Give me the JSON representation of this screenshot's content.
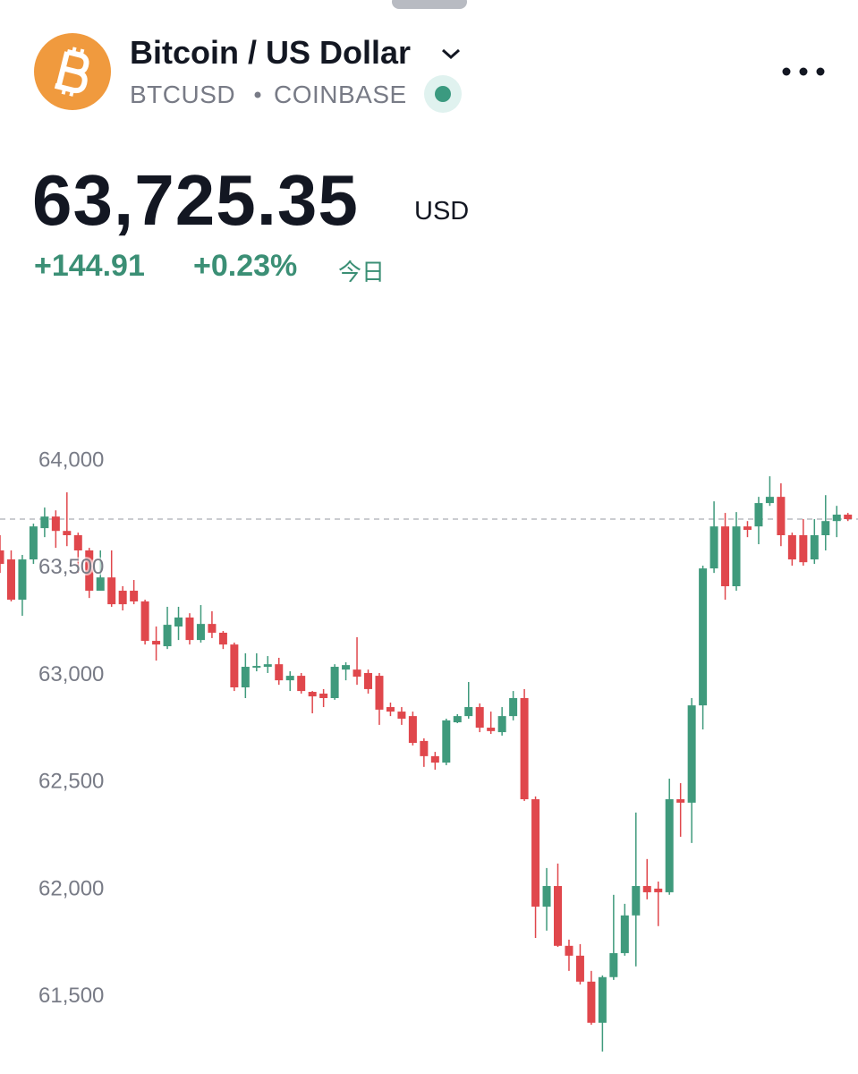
{
  "header": {
    "name": "Bitcoin / US Dollar",
    "symbol": "BTCUSD",
    "exchange": "COINBASE"
  },
  "quote": {
    "price": "63,725.35",
    "currency": "USD",
    "change": "+144.91",
    "change_percent": "+0.23%",
    "period": "今日"
  },
  "chart_data": {
    "type": "candlestick",
    "up_color": "#3f9a7c",
    "down_color": "#e0474c",
    "ylim": [
      61140,
      64105
    ],
    "yticks": [
      {
        "value": 64000,
        "label": "64,000"
      },
      {
        "value": 63500,
        "label": "63,500"
      },
      {
        "value": 63000,
        "label": "63,000"
      },
      {
        "value": 62500,
        "label": "62,500"
      },
      {
        "value": 62000,
        "label": "62,000"
      },
      {
        "value": 61500,
        "label": "61,500"
      }
    ],
    "open": [
      63583,
      63541,
      63353,
      63541,
      63687,
      63741,
      63674,
      63654,
      63583,
      63395,
      63457,
      63395,
      63395,
      63345,
      63161,
      63136,
      63228,
      63270,
      63165,
      63240,
      63199,
      63144,
      62944,
      63036,
      63040,
      63052,
      62977,
      62998,
      62923,
      62915,
      62894,
      63027,
      63027,
      63011,
      62998,
      62852,
      62831,
      62810,
      62694,
      62623,
      62593,
      62781,
      62810,
      62852,
      62756,
      62735,
      62810,
      62894,
      62422,
      61921,
      62017,
      61738,
      61692,
      61571,
      61379,
      61592,
      61704,
      61880,
      62017,
      62005,
      61988,
      62422,
      62406,
      62860,
      63499,
      63695,
      63416,
      63695,
      63695,
      63804,
      63833,
      63654,
      63654,
      63541,
      63654,
      63720,
      63750
    ],
    "high": [
      63654,
      63583,
      63562,
      63708,
      63783,
      63770,
      63854,
      63666,
      63595,
      63583,
      63583,
      63416,
      63445,
      63353,
      63228,
      63320,
      63320,
      63290,
      63328,
      63299,
      63207,
      63153,
      63103,
      63103,
      63090,
      63082,
      63019,
      63011,
      62927,
      62936,
      63052,
      63061,
      63178,
      63027,
      63011,
      62873,
      62852,
      62831,
      62706,
      62643,
      62798,
      62819,
      62969,
      62869,
      62831,
      62852,
      62927,
      62936,
      62435,
      62101,
      62122,
      61767,
      61746,
      61621,
      61600,
      61976,
      61934,
      62360,
      62143,
      62038,
      62518,
      62497,
      62894,
      63512,
      63812,
      63758,
      63762,
      63720,
      63833,
      63929,
      63896,
      63666,
      63729,
      63729,
      63841,
      63791,
      63758
    ],
    "low": [
      63478,
      63345,
      63278,
      63520,
      63645,
      63595,
      63603,
      63478,
      63361,
      63395,
      63320,
      63303,
      63332,
      63144,
      63069,
      63123,
      63165,
      63144,
      63153,
      63174,
      63123,
      62927,
      62894,
      63019,
      63011,
      62956,
      62927,
      62915,
      62823,
      62852,
      62886,
      62977,
      62956,
      62915,
      62769,
      62810,
      62769,
      62673,
      62573,
      62560,
      62581,
      62777,
      62798,
      62735,
      62727,
      62719,
      62790,
      62414,
      61775,
      61809,
      61733,
      61621,
      61558,
      61370,
      61245,
      61579,
      61692,
      61642,
      61955,
      61830,
      61976,
      62247,
      62218,
      62748,
      63478,
      63353,
      63395,
      63645,
      63612,
      63791,
      63603,
      63512,
      63512,
      63520,
      63583,
      63645,
      63720
    ],
    "close": [
      63520,
      63353,
      63541,
      63695,
      63741,
      63674,
      63654,
      63583,
      63395,
      63457,
      63332,
      63332,
      63345,
      63161,
      63144,
      63236,
      63270,
      63165,
      63240,
      63199,
      63144,
      62944,
      63040,
      63044,
      63052,
      62977,
      62998,
      62927,
      62902,
      62894,
      63040,
      63048,
      62994,
      62936,
      62840,
      62831,
      62798,
      62685,
      62623,
      62593,
      62790,
      62810,
      62852,
      62756,
      62740,
      62810,
      62894,
      62422,
      61921,
      62017,
      61738,
      61692,
      61571,
      61379,
      61592,
      61704,
      61880,
      62017,
      61988,
      61988,
      62422,
      62406,
      62860,
      63499,
      63695,
      63416,
      63695,
      63679,
      63804,
      63833,
      63654,
      63541,
      63528,
      63654,
      63720,
      63750,
      63729
    ]
  }
}
